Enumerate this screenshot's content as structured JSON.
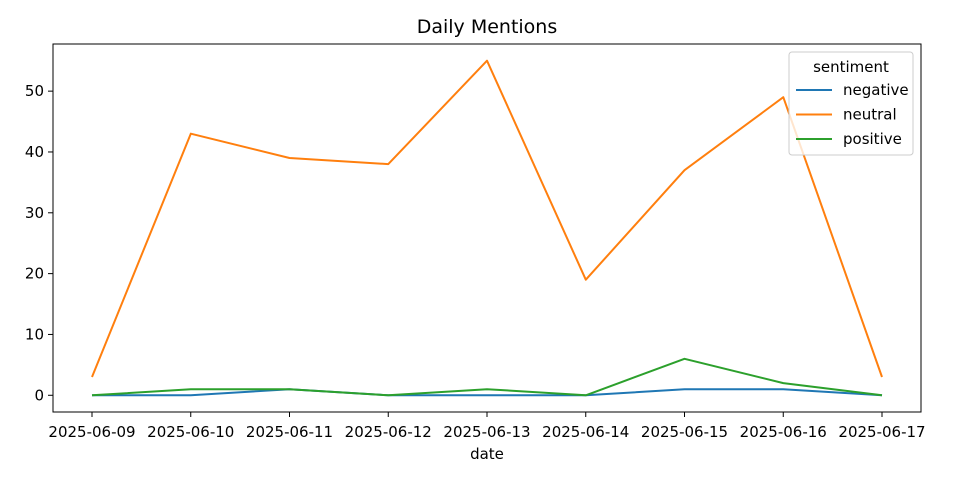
{
  "chart_data": {
    "type": "line",
    "title": "Daily Mentions",
    "xlabel": "date",
    "ylabel": "",
    "x": [
      "2025-06-09",
      "2025-06-10",
      "2025-06-11",
      "2025-06-12",
      "2025-06-13",
      "2025-06-14",
      "2025-06-15",
      "2025-06-16",
      "2025-06-17"
    ],
    "ylim": [
      -2.75,
      57.75
    ],
    "yticks": [
      0,
      10,
      20,
      30,
      40,
      50
    ],
    "grid": false,
    "legend": {
      "title": "sentiment",
      "placement": "top-right"
    },
    "series": [
      {
        "name": "negative",
        "color": "#1f77b4",
        "values": [
          0,
          0,
          1,
          0,
          0,
          0,
          1,
          1,
          0
        ]
      },
      {
        "name": "neutral",
        "color": "#ff7f0e",
        "values": [
          3,
          43,
          39,
          38,
          55,
          19,
          37,
          49,
          3
        ]
      },
      {
        "name": "positive",
        "color": "#2ca02c",
        "values": [
          0,
          1,
          1,
          0,
          1,
          0,
          6,
          2,
          0
        ]
      }
    ]
  }
}
